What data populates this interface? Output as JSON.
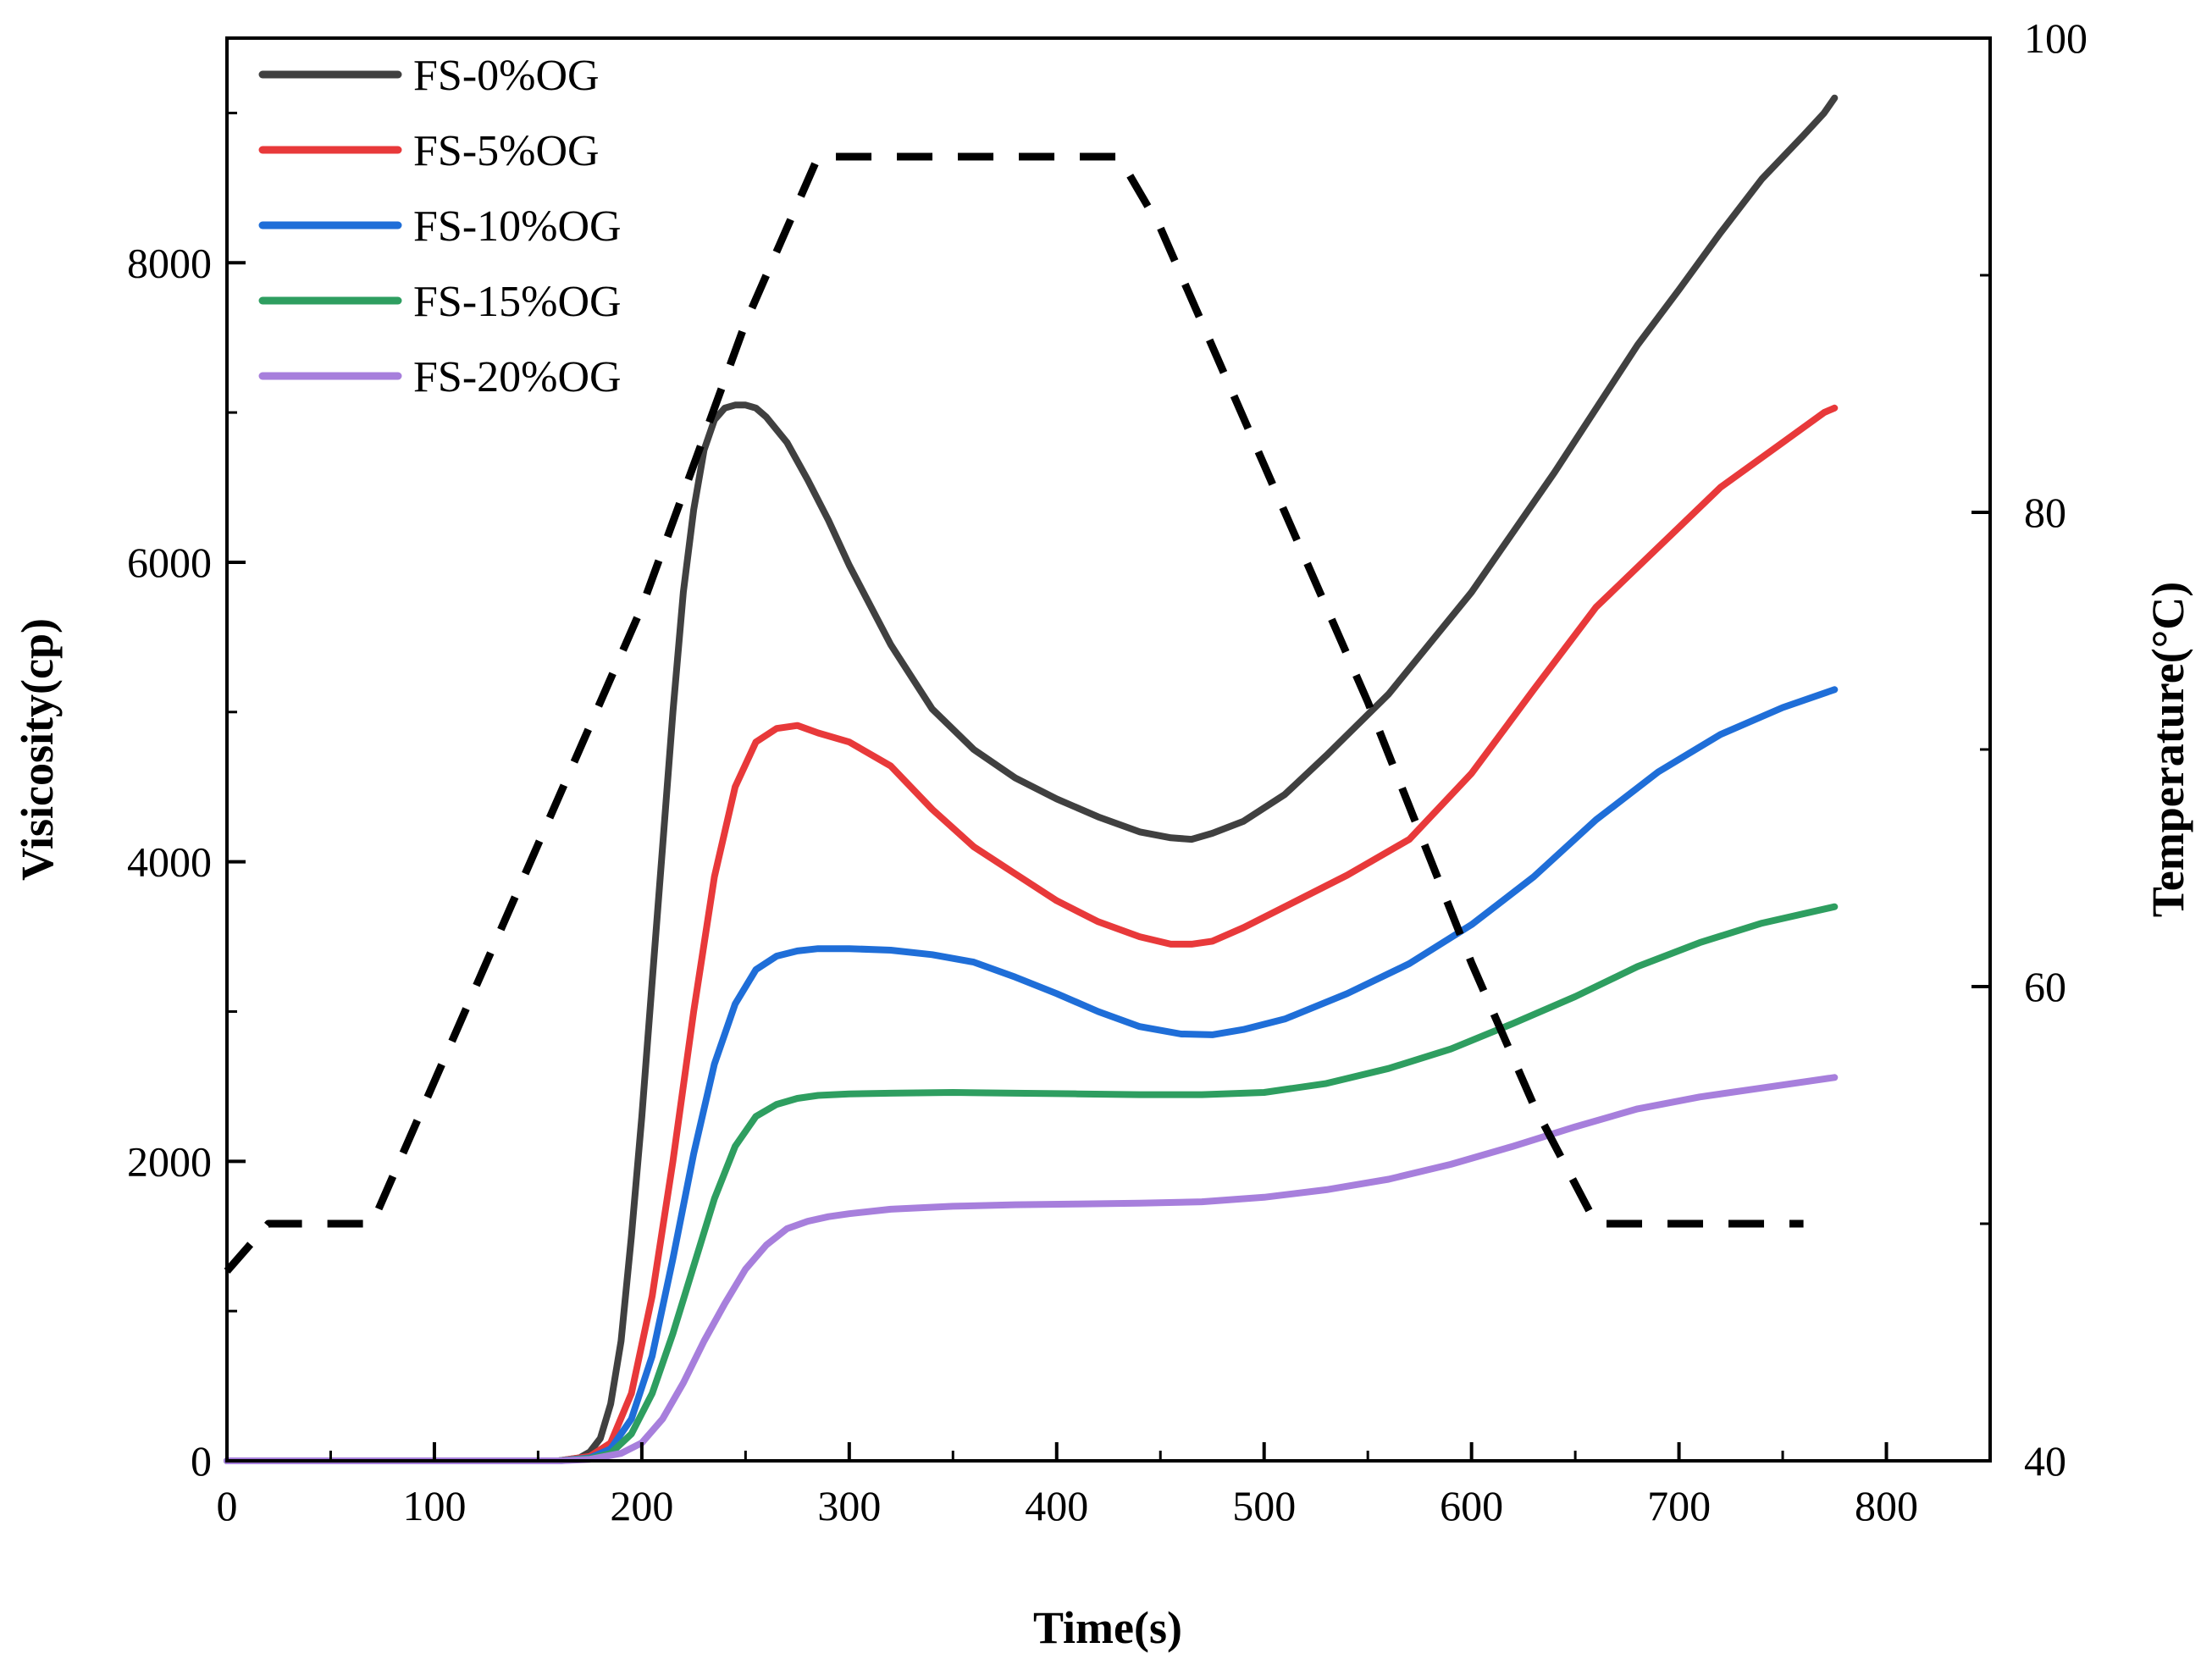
{
  "chart_data": {
    "type": "line",
    "title": "",
    "xlabel": "Time(s)",
    "ylabel": "Visicosity(cp)",
    "y2label": "Temperature(°C)",
    "xlim": [
      0,
      850
    ],
    "ylim": [
      0,
      9500
    ],
    "y2lim": [
      40,
      100
    ],
    "xticks": [
      0,
      100,
      200,
      300,
      400,
      500,
      600,
      700,
      800
    ],
    "yticks": [
      0,
      2000,
      4000,
      6000,
      8000
    ],
    "y2ticks": [
      40,
      60,
      80,
      100
    ],
    "grid": false,
    "legend_position": "top-left",
    "series": [
      {
        "name": "FS-0%OG",
        "color": "#404040",
        "axis": "left",
        "x": [
          0,
          160,
          170,
          175,
          180,
          185,
          190,
          195,
          200,
          205,
          210,
          215,
          220,
          225,
          230,
          235,
          240,
          245,
          250,
          255,
          260,
          270,
          280,
          290,
          300,
          320,
          340,
          360,
          380,
          400,
          420,
          440,
          455,
          465,
          475,
          490,
          510,
          530,
          560,
          600,
          640,
          680,
          700,
          720,
          740,
          760,
          770,
          775
        ],
        "y": [
          0,
          0,
          20,
          60,
          150,
          380,
          800,
          1500,
          2300,
          3200,
          4100,
          5000,
          5800,
          6350,
          6750,
          6950,
          7030,
          7050,
          7050,
          7030,
          6970,
          6800,
          6550,
          6280,
          5980,
          5450,
          5020,
          4750,
          4560,
          4420,
          4300,
          4200,
          4160,
          4150,
          4190,
          4270,
          4450,
          4710,
          5120,
          5800,
          6600,
          7450,
          7820,
          8200,
          8560,
          8850,
          9000,
          9100
        ]
      },
      {
        "name": "FS-5%OG",
        "color": "#e8393a",
        "axis": "left",
        "x": [
          0,
          160,
          175,
          185,
          195,
          205,
          215,
          225,
          235,
          245,
          255,
          265,
          275,
          285,
          300,
          320,
          340,
          360,
          380,
          400,
          420,
          440,
          455,
          465,
          475,
          490,
          510,
          540,
          570,
          600,
          630,
          660,
          690,
          720,
          750,
          770,
          775
        ],
        "y": [
          0,
          0,
          30,
          120,
          450,
          1100,
          2000,
          3000,
          3900,
          4500,
          4800,
          4890,
          4910,
          4860,
          4800,
          4640,
          4350,
          4100,
          3920,
          3740,
          3600,
          3500,
          3450,
          3450,
          3470,
          3560,
          3700,
          3910,
          4150,
          4590,
          5150,
          5700,
          6100,
          6500,
          6800,
          7000,
          7030
        ]
      },
      {
        "name": "FS-10%OG",
        "color": "#1f6ed8",
        "axis": "left",
        "x": [
          0,
          160,
          175,
          185,
          195,
          205,
          215,
          225,
          235,
          245,
          255,
          265,
          275,
          285,
          300,
          320,
          340,
          360,
          380,
          400,
          420,
          440,
          460,
          475,
          490,
          510,
          540,
          570,
          600,
          630,
          660,
          690,
          720,
          750,
          775
        ],
        "y": [
          0,
          0,
          20,
          80,
          280,
          700,
          1350,
          2050,
          2650,
          3050,
          3280,
          3370,
          3405,
          3420,
          3420,
          3410,
          3380,
          3330,
          3230,
          3120,
          3000,
          2900,
          2850,
          2845,
          2880,
          2950,
          3120,
          3320,
          3580,
          3900,
          4280,
          4600,
          4850,
          5030,
          5150
        ]
      },
      {
        "name": "FS-15%OG",
        "color": "#2e9e60",
        "axis": "left",
        "x": [
          0,
          160,
          175,
          185,
          195,
          205,
          215,
          225,
          235,
          245,
          255,
          265,
          275,
          285,
          300,
          320,
          350,
          380,
          410,
          440,
          470,
          500,
          530,
          560,
          590,
          620,
          650,
          680,
          710,
          740,
          775
        ],
        "y": [
          0,
          0,
          15,
          50,
          180,
          450,
          850,
          1300,
          1750,
          2100,
          2300,
          2380,
          2420,
          2440,
          2450,
          2455,
          2460,
          2455,
          2450,
          2445,
          2445,
          2460,
          2520,
          2620,
          2750,
          2920,
          3100,
          3300,
          3460,
          3590,
          3700
        ]
      },
      {
        "name": "FS-20%OG",
        "color": "#a77fdc",
        "axis": "left",
        "x": [
          0,
          160,
          175,
          190,
          200,
          210,
          220,
          230,
          240,
          250,
          260,
          270,
          280,
          290,
          300,
          320,
          350,
          380,
          410,
          440,
          470,
          500,
          530,
          560,
          590,
          620,
          650,
          680,
          710,
          740,
          775
        ],
        "y": [
          0,
          0,
          10,
          50,
          120,
          280,
          520,
          800,
          1050,
          1280,
          1440,
          1550,
          1600,
          1630,
          1650,
          1680,
          1700,
          1710,
          1715,
          1720,
          1730,
          1760,
          1810,
          1880,
          1980,
          2100,
          2230,
          2350,
          2430,
          2490,
          2560
        ]
      },
      {
        "name": "Temperature",
        "color": "#000000",
        "axis": "right",
        "dashed": true,
        "x": [
          0,
          10,
          20,
          40,
          60,
          70,
          100,
          150,
          200,
          250,
          285,
          300,
          320,
          350,
          380,
          420,
          430,
          450,
          475,
          500,
          550,
          600,
          630,
          660,
          700,
          750,
          760
        ],
        "y": [
          48,
          49,
          50,
          50,
          50,
          50,
          56,
          66,
          76,
          88,
          95,
          95,
          95,
          95,
          95,
          95,
          95,
          92,
          87,
          82,
          72,
          61,
          55,
          50,
          50,
          50,
          50
        ]
      }
    ]
  }
}
